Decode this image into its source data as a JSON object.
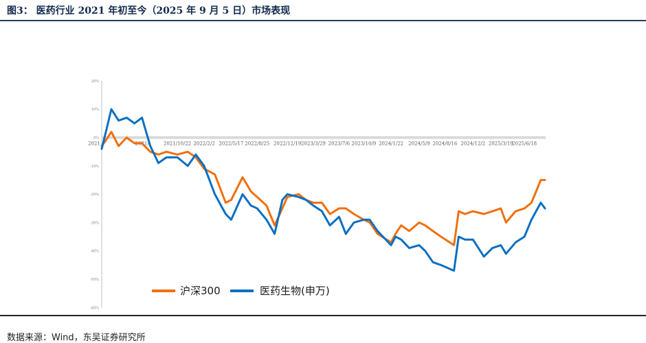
{
  "header": {
    "title": "图3：  医药行业 2021 年初至今（2025 年 9 月 5 日）市场表现"
  },
  "footer": {
    "source": "数据来源：Wind，东吴证券研究所"
  },
  "chart_data": {
    "type": "line",
    "ylim": [
      -0.6,
      0.2
    ],
    "yticks": [
      0.2,
      0.1,
      0,
      -0.1,
      -0.2,
      -0.3,
      -0.4,
      -0.5,
      -0.6
    ],
    "ytick_labels": [
      "20%",
      "10%",
      "0%",
      "-10%",
      "-20%",
      "-30%",
      "-40%",
      "-50%",
      "-60%"
    ],
    "x_start": "2021/1/4",
    "x_end": "2025/9/5",
    "xticks": [
      "2021/1/4",
      "2021/6/8",
      "2021/10/22",
      "2022/2/2",
      "2022/5/17",
      "2022/8/25",
      "2022/12/19",
      "2023/3/29",
      "2023/7/6",
      "2023/10/9",
      "2024/1/22",
      "2024/5/9",
      "2024/8/16",
      "2024/12/2",
      "2025/3/19",
      "2025/6/18"
    ],
    "xtick_labels": [
      "2021",
      "2021/",
      "2021/10/22",
      "2022/2/2",
      "2022/5/17",
      "2022/8/25",
      "2022/12/19",
      "2023/3/29",
      "2023/7/6",
      "2023/10/9",
      "2024/1/22",
      "2024/5/9",
      "2024/8/16",
      "2024/12/2",
      "2025/3/19",
      "2025/6/18"
    ],
    "grid": false,
    "legend_position": "bottom",
    "series": [
      {
        "name": "沪深300",
        "color": "#f06f0f",
        "points": [
          [
            "2021/1/4",
            -0.03
          ],
          [
            "2021/1/20",
            -0.01
          ],
          [
            "2021/2/10",
            0.02
          ],
          [
            "2021/3/10",
            -0.03
          ],
          [
            "2021/4/10",
            0.0
          ],
          [
            "2021/5/10",
            -0.02
          ],
          [
            "2021/6/8",
            -0.02
          ],
          [
            "2021/7/10",
            -0.05
          ],
          [
            "2021/8/10",
            -0.06
          ],
          [
            "2021/9/10",
            -0.05
          ],
          [
            "2021/10/22",
            -0.06
          ],
          [
            "2021/12/1",
            -0.05
          ],
          [
            "2022/1/1",
            -0.07
          ],
          [
            "2022/2/2",
            -0.11
          ],
          [
            "2022/3/15",
            -0.13
          ],
          [
            "2022/4/26",
            -0.23
          ],
          [
            "2022/5/17",
            -0.22
          ],
          [
            "2022/6/30",
            -0.14
          ],
          [
            "2022/8/1",
            -0.19
          ],
          [
            "2022/8/25",
            -0.21
          ],
          [
            "2022/9/30",
            -0.24
          ],
          [
            "2022/10/31",
            -0.31
          ],
          [
            "2022/11/30",
            -0.25
          ],
          [
            "2022/12/19",
            -0.21
          ],
          [
            "2023/1/31",
            -0.2
          ],
          [
            "2023/3/1",
            -0.22
          ],
          [
            "2023/3/29",
            -0.23
          ],
          [
            "2023/5/1",
            -0.23
          ],
          [
            "2023/6/1",
            -0.27
          ],
          [
            "2023/7/6",
            -0.25
          ],
          [
            "2023/8/1",
            -0.25
          ],
          [
            "2023/9/1",
            -0.27
          ],
          [
            "2023/10/9",
            -0.29
          ],
          [
            "2023/11/1",
            -0.3
          ],
          [
            "2023/12/1",
            -0.34
          ],
          [
            "2024/1/22",
            -0.37
          ],
          [
            "2024/2/8",
            -0.34
          ],
          [
            "2024/3/1",
            -0.31
          ],
          [
            "2024/4/1",
            -0.33
          ],
          [
            "2024/5/9",
            -0.3
          ],
          [
            "2024/6/1",
            -0.31
          ],
          [
            "2024/7/1",
            -0.33
          ],
          [
            "2024/8/1",
            -0.35
          ],
          [
            "2024/9/20",
            -0.38
          ],
          [
            "2024/10/8",
            -0.26
          ],
          [
            "2024/11/1",
            -0.27
          ],
          [
            "2024/12/2",
            -0.26
          ],
          [
            "2025/1/13",
            -0.27
          ],
          [
            "2025/2/15",
            -0.26
          ],
          [
            "2025/3/19",
            -0.25
          ],
          [
            "2025/4/8",
            -0.3
          ],
          [
            "2025/5/15",
            -0.26
          ],
          [
            "2025/6/18",
            -0.25
          ],
          [
            "2025/7/15",
            -0.23
          ],
          [
            "2025/8/20",
            -0.15
          ],
          [
            "2025/9/5",
            -0.15
          ]
        ]
      },
      {
        "name": "医药生物(申万)",
        "color": "#0a6fc2",
        "points": [
          [
            "2021/1/4",
            -0.04
          ],
          [
            "2021/1/20",
            0.02
          ],
          [
            "2021/2/10",
            0.1
          ],
          [
            "2021/3/10",
            0.06
          ],
          [
            "2021/4/10",
            0.07
          ],
          [
            "2021/5/10",
            0.05
          ],
          [
            "2021/6/8",
            0.07
          ],
          [
            "2021/7/10",
            -0.03
          ],
          [
            "2021/8/10",
            -0.09
          ],
          [
            "2021/9/10",
            -0.07
          ],
          [
            "2021/10/22",
            -0.07
          ],
          [
            "2021/12/1",
            -0.1
          ],
          [
            "2022/1/1",
            -0.06
          ],
          [
            "2022/2/2",
            -0.1
          ],
          [
            "2022/3/15",
            -0.2
          ],
          [
            "2022/4/26",
            -0.27
          ],
          [
            "2022/5/17",
            -0.29
          ],
          [
            "2022/6/30",
            -0.2
          ],
          [
            "2022/8/1",
            -0.24
          ],
          [
            "2022/8/25",
            -0.25
          ],
          [
            "2022/9/30",
            -0.29
          ],
          [
            "2022/10/31",
            -0.34
          ],
          [
            "2022/11/30",
            -0.22
          ],
          [
            "2022/12/19",
            -0.2
          ],
          [
            "2023/1/31",
            -0.21
          ],
          [
            "2023/3/1",
            -0.22
          ],
          [
            "2023/3/29",
            -0.24
          ],
          [
            "2023/5/1",
            -0.26
          ],
          [
            "2023/6/1",
            -0.31
          ],
          [
            "2023/7/6",
            -0.28
          ],
          [
            "2023/8/1",
            -0.34
          ],
          [
            "2023/9/1",
            -0.3
          ],
          [
            "2023/10/9",
            -0.29
          ],
          [
            "2023/11/1",
            -0.29
          ],
          [
            "2023/12/1",
            -0.33
          ],
          [
            "2024/1/22",
            -0.38
          ],
          [
            "2024/2/8",
            -0.35
          ],
          [
            "2024/3/1",
            -0.36
          ],
          [
            "2024/4/1",
            -0.39
          ],
          [
            "2024/5/9",
            -0.38
          ],
          [
            "2024/6/1",
            -0.4
          ],
          [
            "2024/7/1",
            -0.44
          ],
          [
            "2024/8/1",
            -0.45
          ],
          [
            "2024/9/20",
            -0.47
          ],
          [
            "2024/10/8",
            -0.35
          ],
          [
            "2024/11/1",
            -0.36
          ],
          [
            "2024/12/2",
            -0.36
          ],
          [
            "2025/1/13",
            -0.42
          ],
          [
            "2025/2/15",
            -0.39
          ],
          [
            "2025/3/19",
            -0.38
          ],
          [
            "2025/4/8",
            -0.41
          ],
          [
            "2025/5/15",
            -0.37
          ],
          [
            "2025/6/18",
            -0.35
          ],
          [
            "2025/7/15",
            -0.29
          ],
          [
            "2025/8/20",
            -0.23
          ],
          [
            "2025/9/5",
            -0.25
          ]
        ]
      }
    ]
  }
}
